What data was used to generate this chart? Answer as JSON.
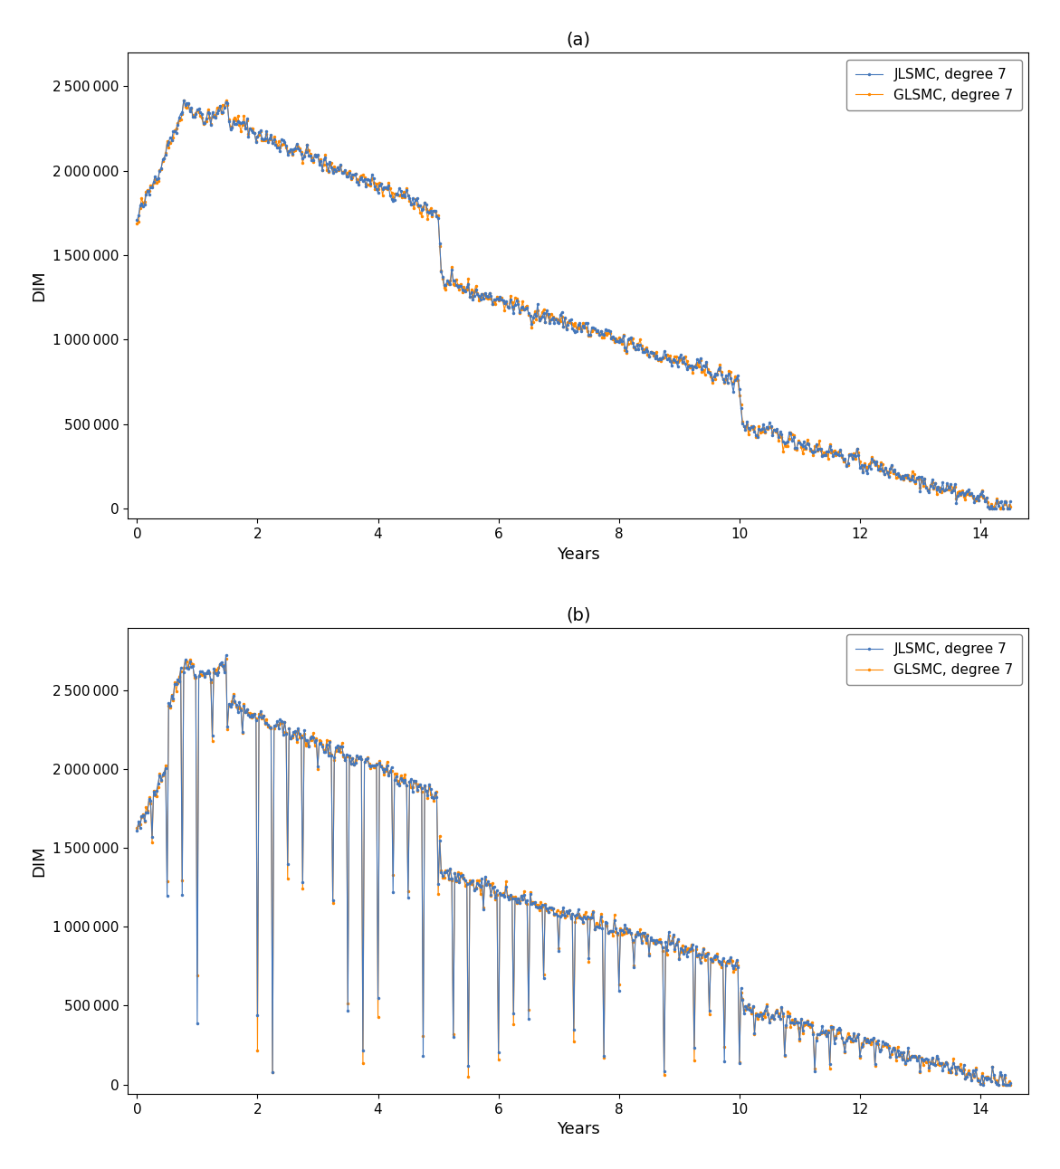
{
  "title_a": "(a)",
  "title_b": "(b)",
  "xlabel": "Years",
  "ylabel": "DIM",
  "color_jlsmc": "#4477bb",
  "color_glsmc": "#ff8800",
  "legend_jlsmc": "JLSMC, degree 7",
  "legend_glsmc": "GLSMC, degree 7",
  "ylim_a": [
    -60000,
    2700000
  ],
  "ylim_b": [
    -60000,
    2900000
  ],
  "xlim": [
    -0.15,
    14.8
  ],
  "yticks_a": [
    0,
    500000,
    1000000,
    1500000,
    2000000,
    2500000
  ],
  "yticks_b": [
    0,
    500000,
    1000000,
    1500000,
    2000000,
    2500000
  ],
  "xticks": [
    0,
    2,
    4,
    6,
    8,
    10,
    12,
    14
  ],
  "figsize": [
    11.71,
    12.92
  ],
  "dpi": 100,
  "t_max": 14.5,
  "marker_size": 2.5,
  "line_width": 0.8,
  "background_color": "#ffffff"
}
